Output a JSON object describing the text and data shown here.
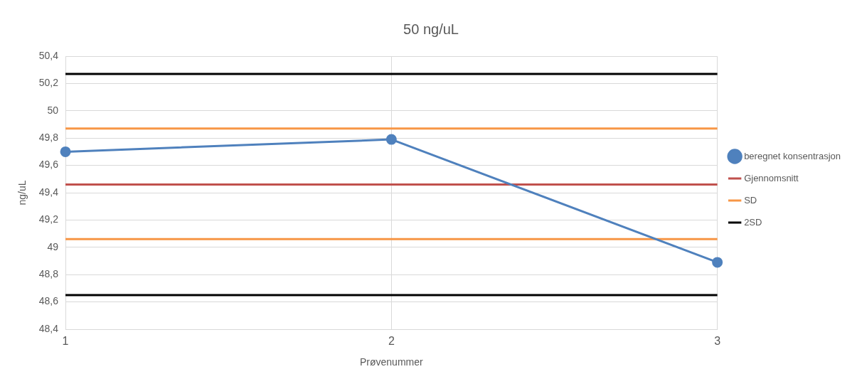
{
  "chart_data": {
    "type": "line",
    "title": "50 ng/uL",
    "xlabel": "Prøvenummer",
    "ylabel": "ng/uL",
    "categories": [
      "1",
      "2",
      "3"
    ],
    "series": [
      {
        "name": "beregnet konsentrasjon",
        "color": "#4f81bd",
        "values": [
          49.7,
          49.79,
          48.89
        ],
        "marker": "circle"
      },
      {
        "name": "Gjennomsnitt",
        "color": "#c0504d",
        "values": [
          49.46,
          49.46,
          49.46
        ],
        "marker": "none"
      },
      {
        "name": "SD",
        "color": "#f79646",
        "values": [
          49.87,
          49.87,
          49.87
        ],
        "marker": "none"
      },
      {
        "color": "#f79646",
        "values": [
          49.06,
          49.06,
          49.06
        ],
        "marker": "none"
      },
      {
        "name": "2SD",
        "color": "#000000",
        "values": [
          50.27,
          50.27,
          50.27
        ],
        "marker": "none"
      },
      {
        "color": "#000000",
        "values": [
          48.65,
          48.65,
          48.65
        ],
        "marker": "none"
      }
    ],
    "ylim": [
      48.4,
      50.4
    ],
    "yticks": [
      {
        "value": 48.4,
        "label": "48,4"
      },
      {
        "value": 48.6,
        "label": "48,6"
      },
      {
        "value": 48.8,
        "label": "48,8"
      },
      {
        "value": 49,
        "label": "49"
      },
      {
        "value": 49.2,
        "label": "49,2"
      },
      {
        "value": 49.4,
        "label": "49,4"
      },
      {
        "value": 49.6,
        "label": "49,6"
      },
      {
        "value": 49.8,
        "label": "49,8"
      },
      {
        "value": 50,
        "label": "50"
      },
      {
        "value": 50.2,
        "label": "50,2"
      },
      {
        "value": 50.4,
        "label": "50,4"
      }
    ],
    "grid": true,
    "legend": "right",
    "line_style": "solid"
  }
}
